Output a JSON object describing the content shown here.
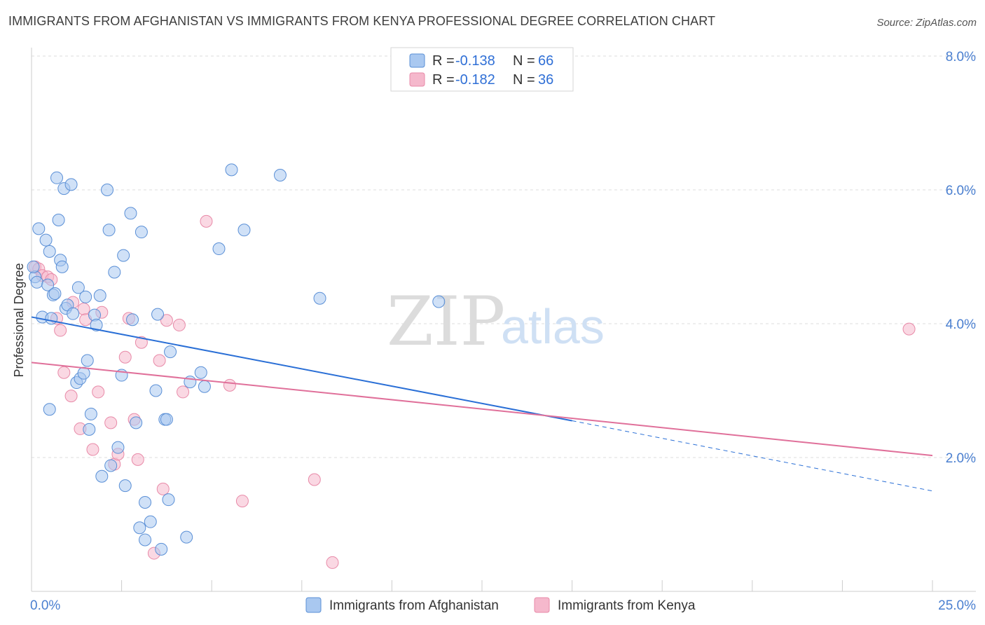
{
  "header": {
    "title": "IMMIGRANTS FROM AFGHANISTAN VS IMMIGRANTS FROM KENYA PROFESSIONAL DEGREE CORRELATION CHART",
    "source": "Source: ZipAtlas.com"
  },
  "watermark": {
    "zip": "ZIP",
    "atlas": "atlas"
  },
  "legend": {
    "rows": [
      {
        "r_label": "R = ",
        "r_value": "-0.138",
        "n_label": "N = ",
        "n_value": "66",
        "color": "#a9c8f0"
      },
      {
        "r_label": "R = ",
        "r_value": "-0.182",
        "n_label": "N = ",
        "n_value": "36",
        "color": "#f5b8cc"
      }
    ]
  },
  "bottom_legend": [
    {
      "label": "Immigrants from Afghanistan",
      "color": "#a9c8f0"
    },
    {
      "label": "Immigrants from Kenya",
      "color": "#f5b8cc"
    }
  ],
  "chart_data": {
    "type": "scatter",
    "title": "IMMIGRANTS FROM AFGHANISTAN VS IMMIGRANTS FROM KENYA PROFESSIONAL DEGREE CORRELATION CHART",
    "xlabel": "",
    "ylabel": "Professional Degree",
    "xlim": [
      0,
      25
    ],
    "ylim": [
      0,
      8
    ],
    "x_ticks": [
      "0.0%",
      "25.0%"
    ],
    "y_ticks": [
      {
        "value": 2,
        "label": "2.0%"
      },
      {
        "value": 4,
        "label": "4.0%"
      },
      {
        "value": 6,
        "label": "6.0%"
      },
      {
        "value": 8,
        "label": "8.0%"
      }
    ],
    "grid": true,
    "legend_position": "top-center",
    "series": [
      {
        "name": "Immigrants from Afghanistan",
        "color": "#a9c8f0",
        "stroke": "#5a8fd6",
        "trend": {
          "x": [
            0,
            15
          ],
          "y": [
            4.1,
            2.55
          ],
          "dashed_to": {
            "x": 25,
            "y": 1.5
          },
          "color": "#2a6fd6"
        },
        "points": [
          [
            0.1,
            4.7
          ],
          [
            0.15,
            4.62
          ],
          [
            0.2,
            5.42
          ],
          [
            0.3,
            4.1
          ],
          [
            0.4,
            5.25
          ],
          [
            0.45,
            4.58
          ],
          [
            0.5,
            5.08
          ],
          [
            0.5,
            2.72
          ],
          [
            0.55,
            4.08
          ],
          [
            0.6,
            4.43
          ],
          [
            0.65,
            4.45
          ],
          [
            0.7,
            6.18
          ],
          [
            0.75,
            5.55
          ],
          [
            0.8,
            4.95
          ],
          [
            0.85,
            4.85
          ],
          [
            0.9,
            6.02
          ],
          [
            0.95,
            4.23
          ],
          [
            1.0,
            4.28
          ],
          [
            1.1,
            6.08
          ],
          [
            1.15,
            4.15
          ],
          [
            1.25,
            3.12
          ],
          [
            1.3,
            4.54
          ],
          [
            1.35,
            3.18
          ],
          [
            1.45,
            3.26
          ],
          [
            1.5,
            4.4
          ],
          [
            1.55,
            3.45
          ],
          [
            1.6,
            2.42
          ],
          [
            1.65,
            2.65
          ],
          [
            1.75,
            4.13
          ],
          [
            1.8,
            3.98
          ],
          [
            1.9,
            4.42
          ],
          [
            1.95,
            1.72
          ],
          [
            2.1,
            6.0
          ],
          [
            2.15,
            5.4
          ],
          [
            2.2,
            1.88
          ],
          [
            2.3,
            4.77
          ],
          [
            2.4,
            2.15
          ],
          [
            2.5,
            3.23
          ],
          [
            2.55,
            5.02
          ],
          [
            2.6,
            1.58
          ],
          [
            2.75,
            5.65
          ],
          [
            2.8,
            4.06
          ],
          [
            2.9,
            2.52
          ],
          [
            3.0,
            0.95
          ],
          [
            3.05,
            5.37
          ],
          [
            3.15,
            1.33
          ],
          [
            3.15,
            0.77
          ],
          [
            3.3,
            1.04
          ],
          [
            3.45,
            3.0
          ],
          [
            3.5,
            4.14
          ],
          [
            3.6,
            0.63
          ],
          [
            3.7,
            2.57
          ],
          [
            3.75,
            2.57
          ],
          [
            3.8,
            1.37
          ],
          [
            3.85,
            3.58
          ],
          [
            4.3,
            0.81
          ],
          [
            4.4,
            3.13
          ],
          [
            4.7,
            3.27
          ],
          [
            4.8,
            3.06
          ],
          [
            5.2,
            5.12
          ],
          [
            5.55,
            6.3
          ],
          [
            5.9,
            5.4
          ],
          [
            6.9,
            6.22
          ],
          [
            8.0,
            4.38
          ],
          [
            11.3,
            4.33
          ],
          [
            0.05,
            4.85
          ]
        ]
      },
      {
        "name": "Immigrants from Kenya",
        "color": "#f5b8cc",
        "stroke": "#e88aa8",
        "trend": {
          "x": [
            0,
            25
          ],
          "y": [
            3.42,
            2.03
          ],
          "color": "#e0709a"
        },
        "points": [
          [
            0.1,
            4.85
          ],
          [
            0.2,
            4.82
          ],
          [
            0.3,
            4.72
          ],
          [
            0.45,
            4.7
          ],
          [
            0.55,
            4.66
          ],
          [
            0.7,
            4.08
          ],
          [
            0.8,
            3.9
          ],
          [
            0.9,
            3.27
          ],
          [
            1.1,
            2.92
          ],
          [
            1.15,
            4.32
          ],
          [
            1.35,
            2.43
          ],
          [
            1.45,
            4.22
          ],
          [
            1.5,
            4.06
          ],
          [
            1.7,
            2.12
          ],
          [
            1.85,
            2.98
          ],
          [
            1.95,
            4.17
          ],
          [
            2.2,
            2.52
          ],
          [
            2.3,
            1.9
          ],
          [
            2.4,
            2.05
          ],
          [
            2.6,
            3.5
          ],
          [
            2.7,
            4.08
          ],
          [
            2.85,
            2.57
          ],
          [
            2.95,
            1.97
          ],
          [
            3.05,
            3.72
          ],
          [
            3.4,
            0.57
          ],
          [
            3.55,
            3.45
          ],
          [
            3.65,
            1.53
          ],
          [
            3.75,
            4.05
          ],
          [
            4.1,
            3.98
          ],
          [
            4.2,
            2.98
          ],
          [
            4.85,
            5.53
          ],
          [
            5.5,
            3.08
          ],
          [
            5.85,
            1.35
          ],
          [
            7.85,
            1.67
          ],
          [
            8.35,
            0.43
          ],
          [
            24.35,
            3.92
          ]
        ]
      }
    ]
  }
}
